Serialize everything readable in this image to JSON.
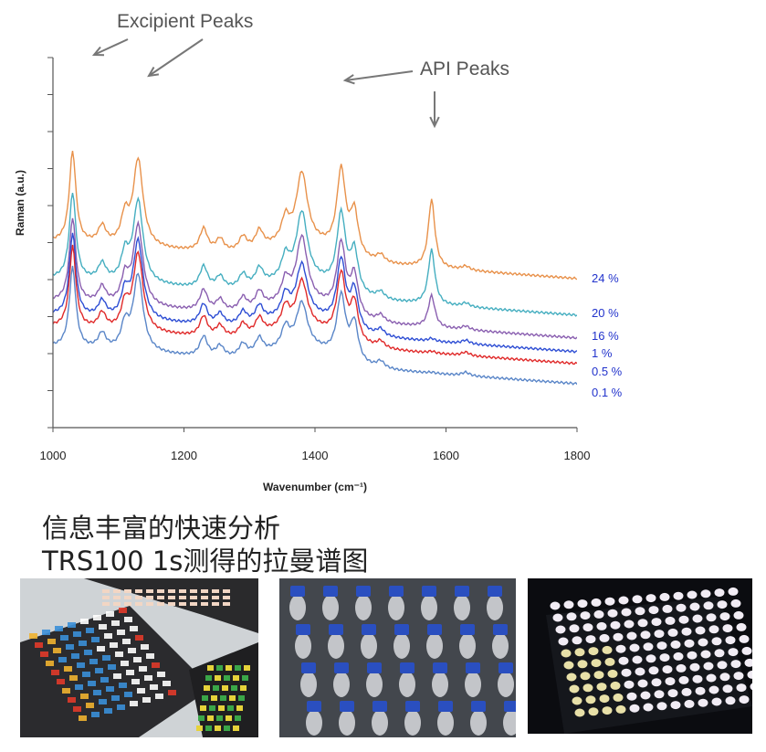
{
  "chart_data": {
    "type": "line",
    "xlabel": "Wavenumber",
    "xlabel_unit": "(cm⁻¹)",
    "ylabel": "Raman (a.u.)",
    "xlim": [
      1000,
      1800
    ],
    "xticks": [
      "1000",
      "1200",
      "1400",
      "1600",
      "1800"
    ],
    "grid": false,
    "legend": "labels at right end of each series",
    "annotations": [
      {
        "text": "Excipient Peaks",
        "targets_x": [
          1030,
          1130
        ]
      },
      {
        "text": "API Peaks",
        "targets_x": [
          1440,
          1578
        ]
      }
    ],
    "series": [
      {
        "name": "24 %",
        "color": "#e8914a",
        "baseline": 305,
        "peaks": [
          [
            1030,
            100
          ],
          [
            1130,
            95
          ],
          [
            1380,
            75
          ],
          [
            1440,
            90
          ],
          [
            1578,
            75
          ]
        ]
      },
      {
        "name": "20 %",
        "color": "#45aec0",
        "baseline": 345,
        "peaks": [
          [
            1030,
            95
          ],
          [
            1130,
            90
          ],
          [
            1380,
            72
          ],
          [
            1440,
            82
          ],
          [
            1578,
            60
          ]
        ]
      },
      {
        "name": "16 %",
        "color": "#8a5fb0",
        "baseline": 370,
        "peaks": [
          [
            1030,
            92
          ],
          [
            1130,
            88
          ],
          [
            1380,
            70
          ],
          [
            1440,
            75
          ],
          [
            1578,
            35
          ]
        ]
      },
      {
        "name": "1 %",
        "color": "#2e4ed4",
        "baseline": 385,
        "peaks": [
          [
            1030,
            90
          ],
          [
            1130,
            86
          ],
          [
            1380,
            55
          ],
          [
            1440,
            72
          ],
          [
            1578,
            3
          ]
        ]
      },
      {
        "name": "0.5 %",
        "color": "#e02a2a",
        "baseline": 398,
        "peaks": [
          [
            1030,
            89
          ],
          [
            1130,
            85
          ],
          [
            1380,
            50
          ],
          [
            1440,
            70
          ],
          [
            1578,
            2
          ]
        ]
      },
      {
        "name": "0.1 %",
        "color": "#5a86c8",
        "baseline": 420,
        "peaks": [
          [
            1030,
            88
          ],
          [
            1130,
            84
          ],
          [
            1380,
            48
          ],
          [
            1440,
            68
          ],
          [
            1578,
            1
          ]
        ]
      }
    ]
  },
  "caption": {
    "line1": "信息丰富的快速分析",
    "line2": "TRS100 1s测得的拉曼谱图"
  },
  "photos": [
    {
      "name": "sample-trays-photo"
    },
    {
      "name": "vial-tray-photo"
    },
    {
      "name": "well-plate-photo"
    }
  ]
}
